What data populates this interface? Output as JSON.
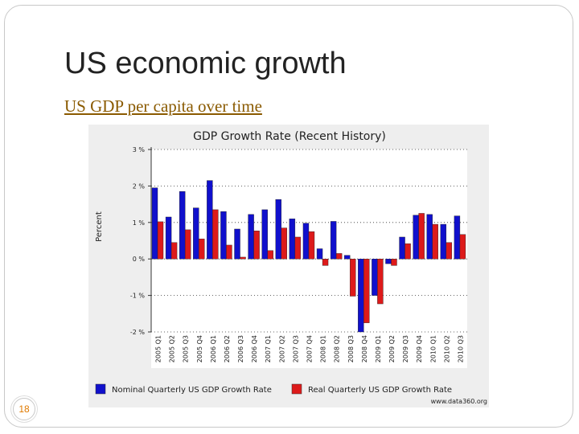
{
  "slide": {
    "title": "US economic growth",
    "subtitle": "US GDP per capita over time",
    "page_number": "18"
  },
  "colors": {
    "nominal": "#1010cc",
    "real": "#dd1a1a",
    "accent_underline": "#c9a24a"
  },
  "chart_data": {
    "type": "bar",
    "title": "GDP Growth Rate (Recent History)",
    "ylabel": "Percent",
    "xlabel": "",
    "ylim": [
      -2,
      3
    ],
    "yticks": [
      {
        "value": 3,
        "label": "3 %"
      },
      {
        "value": 2,
        "label": "2 %"
      },
      {
        "value": 1,
        "label": "1 %"
      },
      {
        "value": 0,
        "label": "0 %"
      },
      {
        "value": -1,
        "label": "-1 %"
      },
      {
        "value": -2,
        "label": "-2 %"
      }
    ],
    "categories": [
      "2005 Q1",
      "2005 Q2",
      "2005 Q3",
      "2005 Q4",
      "2006 Q1",
      "2006 Q2",
      "2006 Q3",
      "2006 Q4",
      "2007 Q1",
      "2007 Q2",
      "2007 Q3",
      "2007 Q4",
      "2008 Q1",
      "2008 Q2",
      "2008 Q3",
      "2008 Q4",
      "2009 Q1",
      "2009 Q2",
      "2009 Q3",
      "2009 Q4",
      "2010 Q1",
      "2010 Q2",
      "2010 Q3"
    ],
    "series": [
      {
        "name": "Nominal Quarterly US GDP Growth Rate",
        "color": "#1010cc",
        "values": [
          1.95,
          1.15,
          1.85,
          1.4,
          2.15,
          1.3,
          0.82,
          1.22,
          1.35,
          1.63,
          1.1,
          0.98,
          0.28,
          1.03,
          0.1,
          -2.0,
          -1.0,
          -0.13,
          0.6,
          1.2,
          1.22,
          0.95,
          1.18
        ]
      },
      {
        "name": "Real Quarterly US GDP Growth Rate",
        "color": "#dd1a1a",
        "values": [
          1.02,
          0.45,
          0.8,
          0.55,
          1.35,
          0.38,
          0.05,
          0.77,
          0.23,
          0.85,
          0.6,
          0.75,
          -0.18,
          0.15,
          -1.02,
          -1.75,
          -1.23,
          -0.18,
          0.42,
          1.25,
          0.95,
          0.45,
          0.67
        ]
      }
    ],
    "legend_position": "bottom",
    "grid": false,
    "source": "www.data360.org"
  }
}
